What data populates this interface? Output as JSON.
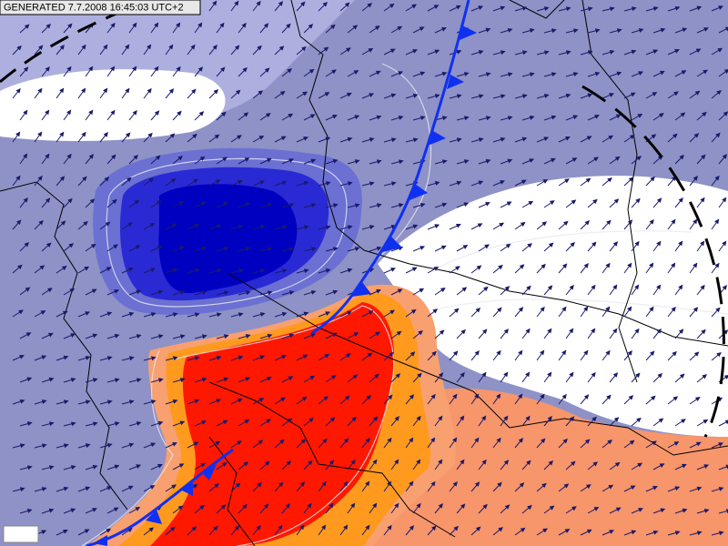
{
  "header": {
    "generated": "GENERATED 7.7.2008 16:45:03 UTC+2"
  }
}
